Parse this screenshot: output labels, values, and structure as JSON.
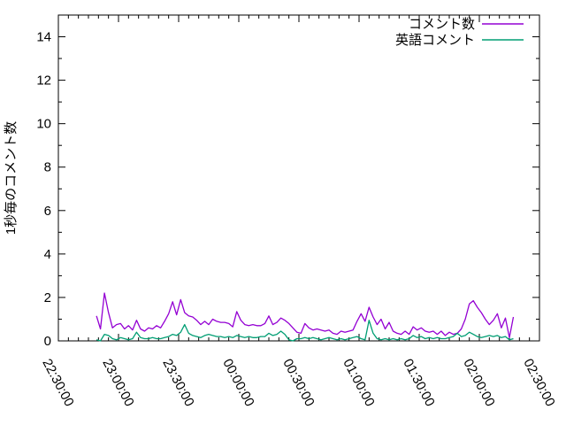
{
  "chart_data": {
    "type": "line",
    "title": "",
    "xlabel": "",
    "ylabel": "1秒毎のコメント数",
    "background_color": "#ffffff",
    "border_color": "#000000",
    "grid": false,
    "legend_position": "top-right-inside",
    "ylim": [
      0,
      15
    ],
    "y_major_ticks": [
      0,
      2,
      4,
      6,
      8,
      10,
      12,
      14
    ],
    "y_minor_tick_step": 1,
    "x_axis_start": "22:30:00",
    "x_axis_end": "02:30:00",
    "x_range_minutes": [
      0,
      240
    ],
    "x_major_step_minutes": 30,
    "x_minor_step_minutes": 5,
    "x_tick_labels": [
      "22:30:00",
      "23:00:00",
      "23:30:00",
      "00:00:00",
      "00:30:00",
      "01:00:00",
      "01:30:00",
      "02:00:00",
      "02:30:00"
    ],
    "series": [
      {
        "name": "コメント数",
        "color": "#9400d3",
        "start_time": "22:49:00",
        "start_offset_minutes": 19,
        "step_minutes": 2,
        "values": [
          1.15,
          0.55,
          2.2,
          1.3,
          0.6,
          0.75,
          0.8,
          0.55,
          0.7,
          0.5,
          0.95,
          0.55,
          0.45,
          0.6,
          0.55,
          0.7,
          0.6,
          0.9,
          1.25,
          1.8,
          1.2,
          1.9,
          1.3,
          1.15,
          1.1,
          0.95,
          0.75,
          0.9,
          0.75,
          1.0,
          0.9,
          0.85,
          0.85,
          0.8,
          0.65,
          1.35,
          0.95,
          0.75,
          0.7,
          0.75,
          0.7,
          0.7,
          0.8,
          1.15,
          0.75,
          0.85,
          1.05,
          0.95,
          0.8,
          0.6,
          0.4,
          0.35,
          0.8,
          0.6,
          0.5,
          0.55,
          0.5,
          0.45,
          0.5,
          0.35,
          0.3,
          0.45,
          0.4,
          0.45,
          0.5,
          0.9,
          1.25,
          0.9,
          1.55,
          1.1,
          0.75,
          1.0,
          0.55,
          0.85,
          0.45,
          0.35,
          0.3,
          0.45,
          0.3,
          0.65,
          0.5,
          0.6,
          0.45,
          0.4,
          0.45,
          0.3,
          0.45,
          0.25,
          0.4,
          0.3,
          0.35,
          0.55,
          1.0,
          1.7,
          1.85,
          1.55,
          1.3,
          1.0,
          0.75,
          0.95,
          1.25,
          0.6,
          1.05,
          0.15,
          1.1
        ]
      },
      {
        "name": "英語コメント",
        "color": "#009e73",
        "start_time": "22:49:00",
        "start_offset_minutes": 19,
        "step_minutes": 2,
        "values": [
          0.05,
          0.0,
          0.3,
          0.25,
          0.1,
          0.05,
          0.15,
          0.1,
          0.05,
          0.1,
          0.4,
          0.15,
          0.1,
          0.1,
          0.15,
          0.1,
          0.1,
          0.15,
          0.2,
          0.3,
          0.25,
          0.4,
          0.75,
          0.35,
          0.25,
          0.2,
          0.15,
          0.25,
          0.3,
          0.25,
          0.2,
          0.2,
          0.15,
          0.2,
          0.15,
          0.25,
          0.2,
          0.15,
          0.2,
          0.15,
          0.15,
          0.2,
          0.2,
          0.35,
          0.25,
          0.3,
          0.45,
          0.3,
          0.05,
          0.0,
          0.1,
          0.1,
          0.15,
          0.1,
          0.15,
          0.1,
          0.05,
          0.1,
          0.15,
          0.1,
          0.05,
          0.1,
          0.05,
          0.1,
          0.15,
          0.2,
          0.1,
          0.05,
          0.95,
          0.35,
          0.1,
          0.05,
          0.1,
          0.05,
          0.1,
          0.05,
          0.1,
          0.05,
          0.1,
          0.25,
          0.15,
          0.2,
          0.1,
          0.15,
          0.1,
          0.15,
          0.1,
          0.1,
          0.15,
          0.2,
          0.35,
          0.2,
          0.25,
          0.4,
          0.3,
          0.2,
          0.15,
          0.2,
          0.25,
          0.2,
          0.25,
          0.15,
          0.2,
          0.05,
          0.1
        ]
      }
    ]
  }
}
